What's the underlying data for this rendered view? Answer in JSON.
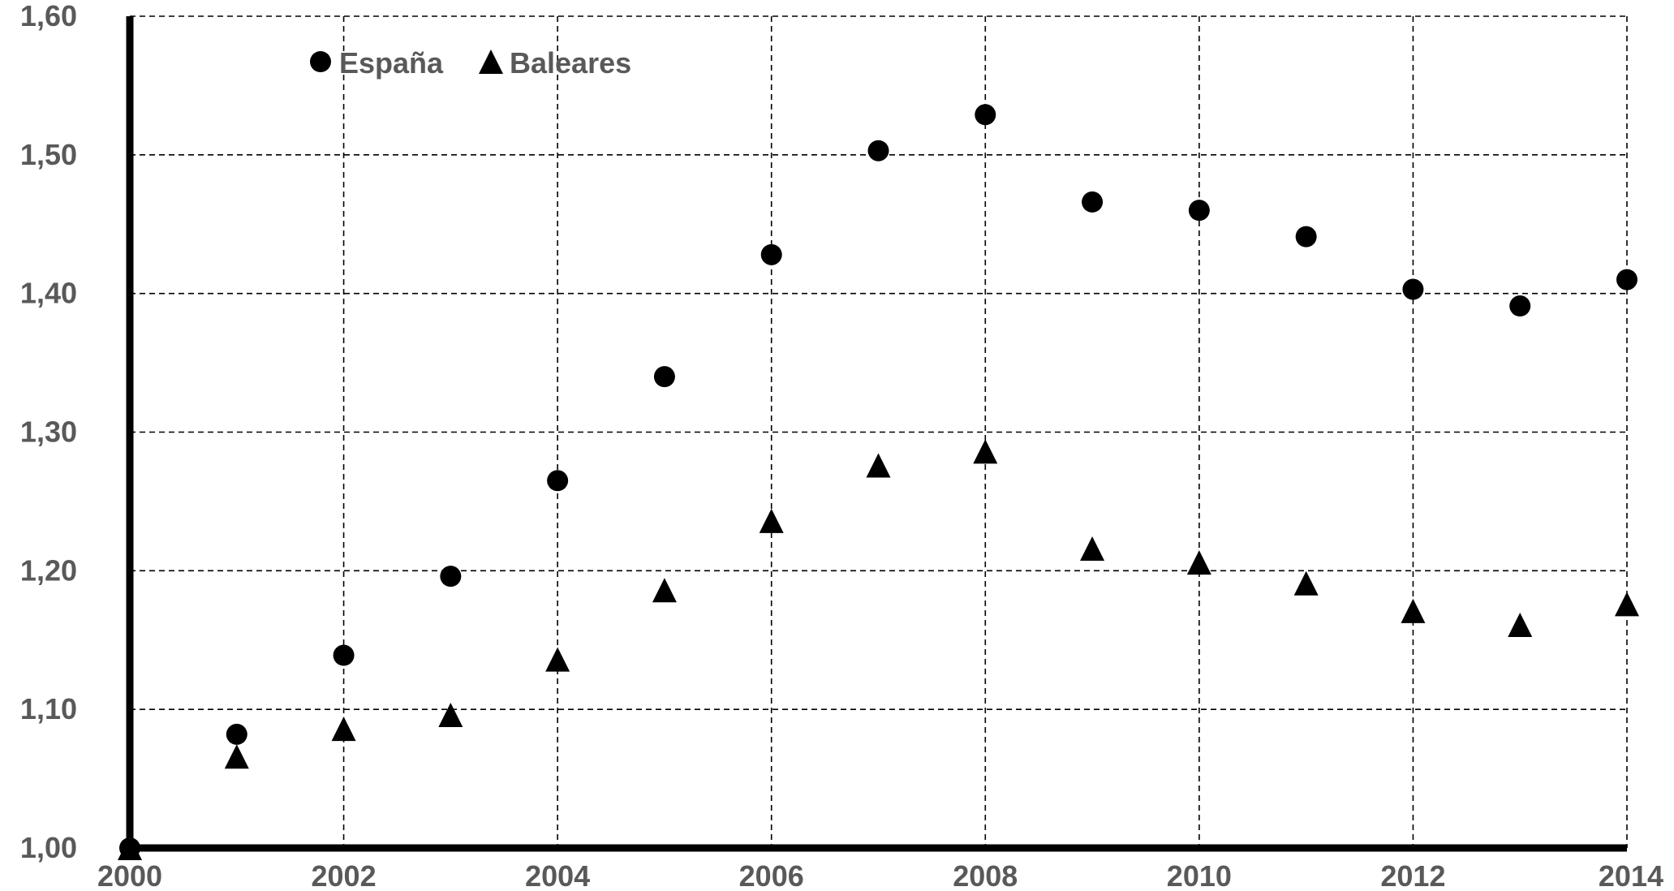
{
  "chart_data": {
    "type": "scatter",
    "title": "",
    "xlabel": "",
    "ylabel": "",
    "xlim": [
      2000,
      2014
    ],
    "ylim": [
      1.0,
      1.6
    ],
    "grid": true,
    "legend_position": "top-left",
    "x_ticks": [
      2000,
      2002,
      2004,
      2006,
      2008,
      2010,
      2012,
      2014
    ],
    "x_tick_labels": [
      "2000",
      "2002",
      "2004",
      "2006",
      "2008",
      "2010",
      "2012",
      "2014"
    ],
    "x_grid": [
      2002,
      2004,
      2006,
      2008,
      2010,
      2012,
      2014
    ],
    "y_ticks": [
      1.0,
      1.1,
      1.2,
      1.3,
      1.4,
      1.5,
      1.6
    ],
    "y_tick_labels": [
      "1,00",
      "1,10",
      "1,20",
      "1,30",
      "1,40",
      "1,50",
      "1,60"
    ],
    "x": [
      2000,
      2001,
      2002,
      2003,
      2004,
      2005,
      2006,
      2007,
      2008,
      2009,
      2010,
      2011,
      2012,
      2013,
      2014
    ],
    "series": [
      {
        "name": "España",
        "marker": "circle",
        "color": "#000000",
        "values": [
          1.0,
          1.082,
          1.139,
          1.196,
          1.265,
          1.34,
          1.428,
          1.503,
          1.529,
          1.466,
          1.46,
          1.441,
          1.403,
          1.391,
          1.41
        ]
      },
      {
        "name": "Baleares",
        "marker": "triangle",
        "color": "#000000",
        "values": [
          1.0,
          1.066,
          1.086,
          1.096,
          1.136,
          1.186,
          1.236,
          1.276,
          1.286,
          1.216,
          1.206,
          1.191,
          1.171,
          1.161,
          1.176
        ]
      }
    ]
  }
}
